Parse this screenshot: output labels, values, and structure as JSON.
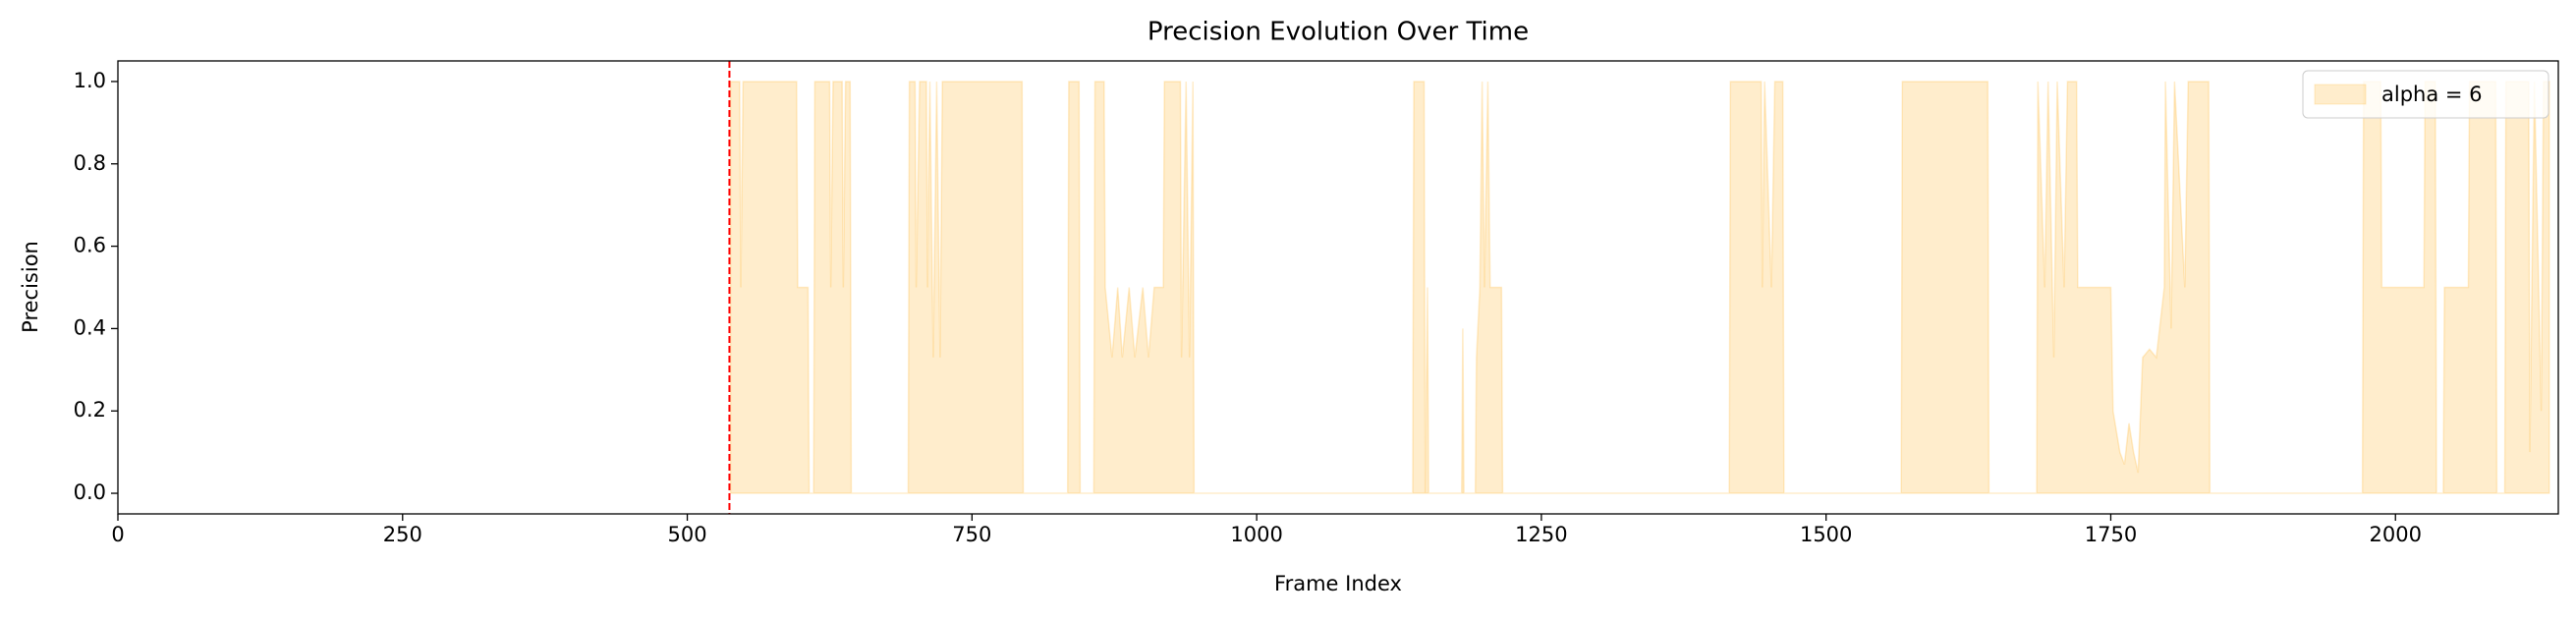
{
  "chart_data": {
    "type": "area",
    "title": "Precision Evolution Over Time",
    "x_label": "Frame Index",
    "y_label": "Precision",
    "xlim": [
      0,
      2143
    ],
    "ylim": [
      -0.05,
      1.05
    ],
    "xticks": [
      0,
      250,
      500,
      750,
      1000,
      1250,
      1500,
      1750,
      2000
    ],
    "yticks": [
      {
        "value": 0,
        "label": "0.0"
      },
      {
        "value": 0.2,
        "label": "0.2"
      },
      {
        "value": 0.4,
        "label": "0.4"
      },
      {
        "value": 0.6,
        "label": "0.6"
      },
      {
        "value": 0.8,
        "label": "0.8"
      },
      {
        "value": 1,
        "label": "1.0"
      }
    ],
    "legend": "upper right",
    "grid": false,
    "vline": 537,
    "vline_color": "#ff0000",
    "x": [
      538,
      546,
      547,
      549,
      596,
      597,
      606,
      607,
      611,
      612,
      625,
      626,
      628,
      636,
      637,
      639,
      643,
      644,
      694,
      695,
      700,
      701,
      704,
      710,
      711,
      713,
      716,
      719,
      722,
      724,
      794,
      795,
      834,
      835,
      844,
      845,
      857,
      858,
      866,
      867,
      873,
      878,
      882,
      888,
      893,
      900,
      905,
      910,
      918,
      919,
      933,
      934,
      938,
      941,
      944,
      945,
      1137,
      1138,
      1147,
      1148,
      1150,
      1151,
      1180,
      1181,
      1182,
      1192,
      1193,
      1196,
      1198,
      1200,
      1203,
      1205,
      1215,
      1216,
      1415,
      1416,
      1443,
      1444,
      1446,
      1452,
      1455,
      1462,
      1463,
      1566,
      1567,
      1642,
      1643,
      1685,
      1686,
      1692,
      1695,
      1700,
      1703,
      1709,
      1712,
      1720,
      1721,
      1750,
      1752,
      1758,
      1762,
      1766,
      1770,
      1774,
      1778,
      1784,
      1790,
      1797,
      1798,
      1803,
      1806,
      1815,
      1818,
      1836,
      1837,
      1971,
      1972,
      1987,
      1988,
      2025,
      2026,
      2035,
      2036,
      2042,
      2043,
      2064,
      2065,
      2088,
      2089,
      2096,
      2097,
      2117,
      2118,
      2122,
      2128,
      2130,
      2135
    ],
    "series": [
      {
        "name": "alpha = 6",
        "color": "#ffa500",
        "values": [
          1,
          1,
          0.5,
          1,
          1,
          0.5,
          0.5,
          0,
          0,
          1,
          1,
          0.5,
          1,
          1,
          0.5,
          1,
          1,
          0,
          0,
          1,
          1,
          0.5,
          1,
          1,
          0.5,
          1,
          0.33,
          1,
          0.33,
          1,
          1,
          0,
          0,
          1,
          1,
          0,
          0,
          1,
          1,
          0.5,
          0.33,
          0.5,
          0.33,
          0.5,
          0.33,
          0.5,
          0.33,
          0.5,
          0.5,
          1,
          1,
          0.33,
          1,
          0.33,
          1,
          0,
          0,
          1,
          1,
          0,
          0.5,
          0,
          0,
          0.4,
          0,
          0,
          0.33,
          0.5,
          1,
          0.5,
          1,
          0.5,
          0.5,
          0,
          0,
          1,
          1,
          0.5,
          1,
          0.5,
          1,
          1,
          0,
          0,
          1,
          1,
          0,
          0,
          1,
          0.5,
          1,
          0.33,
          1,
          0.5,
          1,
          1,
          0.5,
          0.5,
          0.2,
          0.1,
          0.07,
          0.17,
          0.1,
          0.05,
          0.33,
          0.35,
          0.33,
          0.5,
          1,
          0.4,
          1,
          0.5,
          1,
          1,
          0,
          0,
          1,
          1,
          0.5,
          0.5,
          1,
          1,
          0,
          0,
          0.5,
          0.5,
          1,
          1,
          0,
          0,
          1,
          1,
          0.1,
          1,
          0.2,
          1,
          1
        ]
      }
    ]
  }
}
